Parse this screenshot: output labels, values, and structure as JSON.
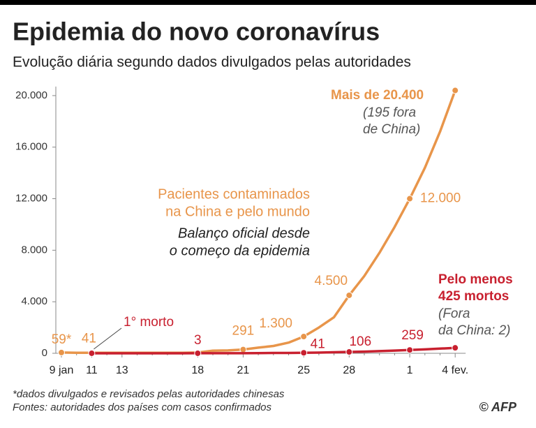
{
  "chart_data": {
    "type": "line",
    "title": "Epidemia do novo coronavírus",
    "subtitle": "Evolução diária segundo dados divulgados pelas autoridades",
    "categories": [
      "9 jan",
      null,
      "11",
      null,
      "13",
      null,
      null,
      null,
      null,
      "18",
      null,
      null,
      "21",
      null,
      null,
      null,
      "25",
      null,
      null,
      "28",
      null,
      null,
      null,
      "1",
      null,
      null,
      "4 fev."
    ],
    "series": [
      {
        "name": "Pacientes contaminados na China e pelo mundo",
        "color": "#e8954a",
        "values": [
          59,
          41,
          41,
          41,
          41,
          41,
          41,
          41,
          41,
          62,
          200,
          220,
          291,
          440,
          571,
          830,
          1300,
          2000,
          2800,
          4500,
          6000,
          7800,
          9800,
          12000,
          14400,
          17200,
          20400
        ],
        "value_labels": [
          "59*",
          null,
          "41",
          null,
          null,
          null,
          null,
          null,
          null,
          null,
          null,
          null,
          "291",
          null,
          null,
          null,
          "1.300",
          null,
          null,
          "4.500",
          null,
          null,
          null,
          "12.000",
          null,
          null,
          null
        ]
      },
      {
        "name": "Mortos",
        "color": "#c8202f",
        "values": [
          null,
          null,
          1,
          1,
          1,
          1,
          2,
          2,
          2,
          3,
          3,
          4,
          6,
          17,
          25,
          26,
          41,
          56,
          80,
          106,
          132,
          170,
          213,
          259,
          304,
          361,
          425
        ],
        "value_labels": [
          null,
          null,
          null,
          null,
          null,
          null,
          null,
          null,
          null,
          "3",
          null,
          null,
          null,
          null,
          null,
          null,
          "41",
          null,
          null,
          "106",
          null,
          null,
          null,
          "259",
          null,
          null,
          null
        ]
      }
    ],
    "ylim": [
      0,
      20700
    ],
    "yticks": [
      0,
      {
        "value": 4000,
        "label": "4.000"
      },
      {
        "value": 8000,
        "label": "8.000"
      },
      {
        "value": 12000,
        "label": "12.000"
      },
      {
        "value": 16000,
        "label": "16.000"
      },
      {
        "value": 20000,
        "label": "20.000"
      }
    ],
    "grid": false,
    "annotations": {
      "cases_total": "Mais de 20.400",
      "cases_outside": [
        "(195 fora",
        "de China)"
      ],
      "cases_label": [
        "Pacientes contaminados",
        "na China e pelo mundo"
      ],
      "cases_note": [
        "Balanço oficial desde",
        "o começo da epidemia"
      ],
      "first_death": "1° morto",
      "deaths_label": [
        "Pelo menos",
        "425 mortos"
      ],
      "deaths_outside": [
        "(Fora",
        "da China: 2)"
      ]
    },
    "footnotes": [
      "*dados divulgados e revisados pelas autoridades chinesas",
      "Fontes: autoridades dos países com casos confirmados"
    ],
    "credit": "© AFP"
  }
}
